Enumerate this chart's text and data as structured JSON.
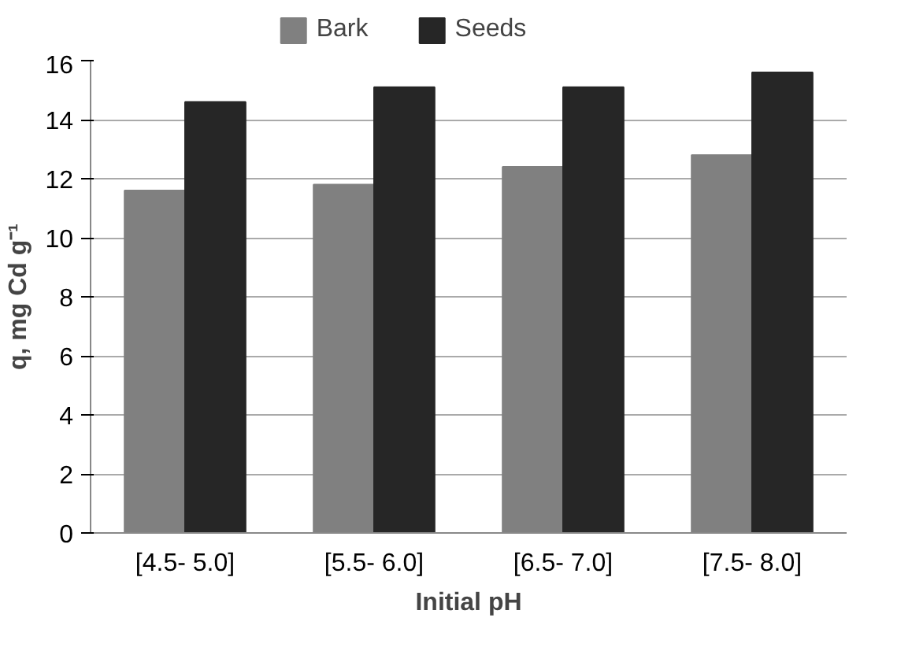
{
  "chart_data": {
    "type": "bar",
    "xlabel": "Initial pH",
    "ylabel": "q, mg Cd g⁻¹",
    "categories": [
      "[4.5- 5.0]",
      "[5.5- 6.0]",
      "[6.5- 7.0]",
      "[7.5- 8.0]"
    ],
    "series": [
      {
        "name": "Bark",
        "color": "#808080",
        "values": [
          11.6,
          11.8,
          12.4,
          12.8
        ]
      },
      {
        "name": "Seeds",
        "color": "#262626",
        "values": [
          14.6,
          15.1,
          15.1,
          15.6
        ]
      }
    ],
    "ylim": [
      0,
      16
    ],
    "yticks": [
      0,
      2,
      4,
      6,
      8,
      10,
      12,
      14,
      16
    ],
    "grid": "y",
    "legend": "top"
  }
}
